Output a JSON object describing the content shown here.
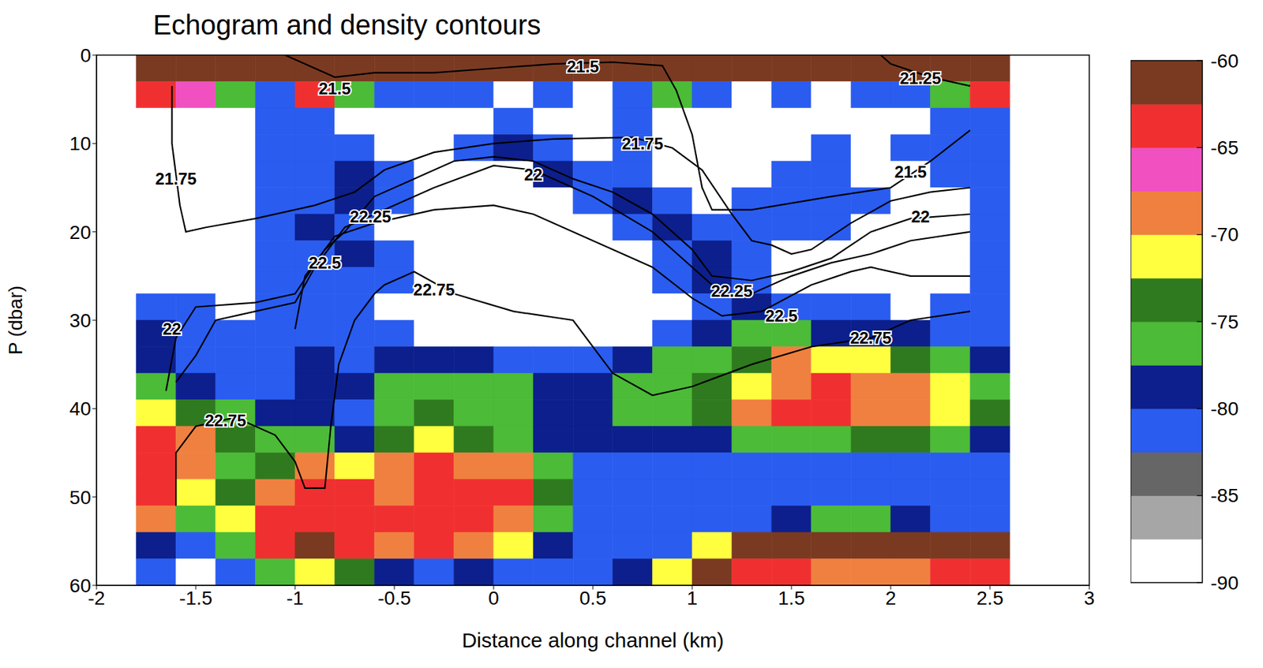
{
  "chart_data": {
    "type": "heatmap",
    "title": "Echogram and density contours",
    "x_label": "Distance along channel (km)",
    "y_label": "P (dbar)",
    "xlim": [
      -2,
      3
    ],
    "xticks": [
      -2,
      -1.5,
      -1,
      -0.5,
      0,
      0.5,
      1,
      1.5,
      2,
      2.5,
      3
    ],
    "ylim": [
      60,
      0
    ],
    "yticks": [
      0,
      10,
      20,
      30,
      40,
      50,
      60
    ],
    "x_edges": [
      -1.8,
      -1.6,
      -1.4,
      -1.2,
      -1,
      -0.8,
      -0.6,
      -0.4,
      -0.2,
      0,
      0.2,
      0.4,
      0.6,
      0.8,
      1,
      1.2,
      1.4,
      1.6,
      1.8,
      2,
      2.2,
      2.4,
      2.6
    ],
    "y_edges": [
      0,
      3,
      6,
      9,
      12,
      15,
      18,
      21,
      24,
      27,
      30,
      33,
      36,
      39,
      42,
      45,
      48,
      51,
      54,
      57,
      60
    ],
    "cells": [
      [
        -61,
        -61,
        -61,
        -61,
        -61,
        -61,
        -61,
        -61,
        -61,
        -61,
        -61,
        -61,
        -61,
        -61,
        -61,
        -61,
        -61,
        -61,
        -61,
        -61,
        -61,
        -61
      ],
      [
        -64,
        -66,
        -76,
        -82,
        -64,
        -76,
        -82,
        -82,
        -82,
        -88,
        -82,
        -88,
        -82,
        -76,
        -82,
        -88,
        -82,
        -88,
        -82,
        -82,
        -76,
        -64
      ],
      [
        -88,
        -88,
        -88,
        -82,
        -82,
        -88,
        -88,
        -88,
        -88,
        -82,
        -88,
        -88,
        -82,
        -88,
        -88,
        -88,
        -88,
        -88,
        -88,
        -88,
        -82,
        -82
      ],
      [
        -88,
        -88,
        -88,
        -82,
        -82,
        -82,
        -88,
        -88,
        -82,
        -79,
        -82,
        -88,
        -82,
        -88,
        -88,
        -88,
        -88,
        -82,
        -88,
        -82,
        -82,
        -82
      ],
      [
        -88,
        -88,
        -88,
        -82,
        -82,
        -79,
        -82,
        -88,
        -88,
        -88,
        -79,
        -82,
        -82,
        -88,
        -88,
        -88,
        -82,
        -82,
        -88,
        -88,
        -82,
        -82
      ],
      [
        -88,
        -88,
        -88,
        -82,
        -82,
        -79,
        -82,
        -88,
        -88,
        -88,
        -88,
        -82,
        -79,
        -82,
        -88,
        -82,
        -82,
        -82,
        -82,
        -88,
        -88,
        -82
      ],
      [
        -88,
        -88,
        -88,
        -82,
        -79,
        -82,
        -88,
        -88,
        -88,
        -88,
        -88,
        -88,
        -82,
        -79,
        -82,
        -82,
        -82,
        -82,
        -88,
        -88,
        -88,
        -82
      ],
      [
        -88,
        -88,
        -88,
        -82,
        -82,
        -79,
        -82,
        -88,
        -88,
        -88,
        -88,
        -88,
        -88,
        -82,
        -79,
        -82,
        -88,
        -88,
        -88,
        -88,
        -88,
        -82
      ],
      [
        -88,
        -88,
        -88,
        -82,
        -82,
        -82,
        -82,
        -88,
        -88,
        -88,
        -88,
        -88,
        -88,
        -82,
        -79,
        -82,
        -88,
        -88,
        -88,
        -88,
        -88,
        -82
      ],
      [
        -82,
        -82,
        -88,
        -82,
        -82,
        -82,
        -88,
        -88,
        -88,
        -88,
        -88,
        -88,
        -88,
        -88,
        -82,
        -79,
        -82,
        -82,
        -82,
        -88,
        -82,
        -82
      ],
      [
        -79,
        -82,
        -82,
        -82,
        -82,
        -82,
        -82,
        -88,
        -88,
        -88,
        -88,
        -88,
        -88,
        -82,
        -79,
        -76,
        -76,
        -79,
        -79,
        -79,
        -82,
        -82
      ],
      [
        -79,
        -82,
        -82,
        -82,
        -79,
        -82,
        -79,
        -79,
        -79,
        -82,
        -82,
        -82,
        -79,
        -76,
        -76,
        -74,
        -69,
        -71,
        -71,
        -74,
        -76,
        -79
      ],
      [
        -76,
        -79,
        -82,
        -82,
        -79,
        -79,
        -76,
        -76,
        -76,
        -76,
        -79,
        -79,
        -76,
        -76,
        -74,
        -71,
        -69,
        -64,
        -69,
        -69,
        -71,
        -76
      ],
      [
        -71,
        -74,
        -76,
        -79,
        -79,
        -82,
        -76,
        -74,
        -76,
        -76,
        -79,
        -79,
        -76,
        -76,
        -74,
        -69,
        -64,
        -64,
        -69,
        -69,
        -71,
        -74
      ],
      [
        -64,
        -69,
        -74,
        -76,
        -76,
        -79,
        -74,
        -71,
        -74,
        -76,
        -79,
        -79,
        -79,
        -79,
        -79,
        -76,
        -76,
        -76,
        -74,
        -74,
        -76,
        -79
      ],
      [
        -64,
        -69,
        -76,
        -74,
        -69,
        -71,
        -69,
        -64,
        -69,
        -69,
        -76,
        -82,
        -82,
        -82,
        -82,
        -82,
        -82,
        -82,
        -82,
        -82,
        -82,
        -82
      ],
      [
        -64,
        -71,
        -74,
        -69,
        -64,
        -64,
        -69,
        -64,
        -64,
        -64,
        -74,
        -82,
        -82,
        -82,
        -82,
        -82,
        -82,
        -82,
        -82,
        -82,
        -82,
        -82
      ],
      [
        -69,
        -76,
        -71,
        -64,
        -64,
        -64,
        -64,
        -64,
        -64,
        -69,
        -76,
        -82,
        -82,
        -82,
        -82,
        -82,
        -79,
        -76,
        -76,
        -79,
        -82,
        -82
      ],
      [
        -79,
        -82,
        -76,
        -64,
        -61,
        -64,
        -69,
        -64,
        -69,
        -71,
        -79,
        -82,
        -82,
        -82,
        -71,
        -61,
        -61,
        -61,
        -61,
        -61,
        -61,
        -61
      ],
      [
        -82,
        -88,
        -82,
        -76,
        -71,
        -74,
        -79,
        -82,
        -79,
        -82,
        -82,
        -82,
        -79,
        -71,
        -61,
        -64,
        -64,
        -69,
        -69,
        -69,
        -64,
        -64
      ]
    ],
    "colorbar": {
      "range": [
        -90,
        -60
      ],
      "ticks": [
        -90,
        -85,
        -80,
        -75,
        -70,
        -65,
        -60
      ],
      "colors": [
        "#ffffff",
        "#a6a6a6",
        "#666666",
        "#2a5cf0",
        "#0c1f8c",
        "#4cbb38",
        "#2f7a1e",
        "#ffff40",
        "#f08040",
        "#f050c0",
        "#f03030",
        "#7a3a22"
      ]
    },
    "contours": [
      {
        "level": 21.25,
        "x": [
          1.95,
          2.0,
          2.2,
          2.4
        ],
        "y": [
          0,
          1,
          2.5,
          3.5
        ],
        "label_at": [
          [
            2.15,
            2.6
          ]
        ]
      },
      {
        "level": 21.5,
        "x": [
          -1.05,
          -0.8,
          -0.6,
          -0.3,
          0,
          0.3,
          0.6,
          0.85,
          0.92,
          1.0,
          1.05,
          1.1,
          1.3,
          1.7,
          2.0,
          2.2,
          2.4
        ],
        "y": [
          0,
          2.5,
          2,
          2,
          1.5,
          1,
          0.8,
          1.2,
          4,
          9,
          15,
          17.5,
          17.5,
          16,
          15,
          12,
          8.5
        ],
        "label_at": [
          [
            -0.8,
            3.8
          ],
          [
            0.45,
            1.3
          ],
          [
            2.1,
            13.2
          ]
        ]
      },
      {
        "level": 21.75,
        "x": [
          -1.62,
          -1.62,
          -1.58,
          -1.55,
          -1.45,
          -1.2,
          -0.9,
          -0.7,
          -0.55,
          -0.3,
          0,
          0.3,
          0.7,
          0.9,
          1.05,
          1.2,
          1.3,
          1.4,
          1.5,
          1.6,
          1.8,
          2.0,
          2.2,
          2.4
        ],
        "y": [
          3.5,
          10,
          17,
          20,
          19.5,
          18.5,
          17,
          15.5,
          13,
          11,
          10,
          9.5,
          9.3,
          10.5,
          13,
          18,
          21,
          21.5,
          22.5,
          22,
          19,
          16.5,
          15.5,
          15
        ],
        "label_at": [
          [
            -1.6,
            14
          ],
          [
            0.75,
            10
          ]
        ]
      },
      {
        "level": 22,
        "x": [
          -1.65,
          -1.6,
          -1.5,
          -1.2,
          -1.0,
          -0.85,
          -0.75,
          -0.6,
          -0.4,
          -0.2,
          0,
          0.2,
          0.4,
          0.6,
          0.8,
          1.0,
          1.1,
          1.3,
          1.5,
          1.7,
          1.9,
          2.1,
          2.4
        ],
        "y": [
          38,
          32,
          28.5,
          28,
          27,
          22,
          20,
          16,
          14,
          12,
          11.5,
          12,
          14,
          15.5,
          18,
          22,
          25,
          25.5,
          24.5,
          23,
          20,
          18.5,
          18
        ],
        "label_at": [
          [
            -1.62,
            31
          ],
          [
            0.2,
            13.5
          ],
          [
            2.15,
            18.3
          ]
        ]
      },
      {
        "level": 22.25,
        "x": [
          -1.6,
          -1.5,
          -1.4,
          -1.2,
          -1.0,
          -0.9,
          -0.75,
          -0.55,
          -0.3,
          0,
          0.2,
          0.5,
          0.8,
          1.0,
          1.15,
          1.3,
          1.5,
          1.7,
          1.9,
          2.1,
          2.4
        ],
        "y": [
          37,
          34,
          30,
          29,
          28,
          24,
          19.5,
          17.5,
          15,
          12.5,
          13,
          16,
          20,
          24,
          27,
          27,
          25,
          23.5,
          22.5,
          21,
          20
        ],
        "label_at": [
          [
            -0.62,
            18.3
          ],
          [
            1.2,
            26.7
          ]
        ]
      },
      {
        "level": 22.5,
        "x": [
          -1.0,
          -0.95,
          -0.8,
          -0.6,
          -0.3,
          0,
          0.2,
          0.5,
          0.8,
          1.0,
          1.15,
          1.35,
          1.6,
          1.8,
          1.9,
          2.1,
          2.4
        ],
        "y": [
          31,
          25,
          20.5,
          19,
          17.5,
          17,
          18,
          21,
          24,
          27.5,
          29.5,
          29,
          26,
          24.5,
          24,
          25,
          25
        ],
        "label_at": [
          [
            -0.85,
            23.5
          ],
          [
            1.45,
            29.5
          ]
        ]
      },
      {
        "level": 22.75,
        "x": [
          -1.6,
          -1.6,
          -1.5,
          -1.3,
          -1.1,
          -1.0,
          -0.95,
          -0.85,
          -0.82,
          -0.78,
          -0.7,
          -0.6,
          -0.55,
          -0.4,
          -0.2,
          0.1,
          0.4,
          0.6,
          0.8,
          1.0,
          1.3,
          1.6,
          1.9,
          2.1,
          2.4
        ],
        "y": [
          51,
          45,
          42,
          41,
          43,
          46,
          49,
          49,
          42,
          35,
          30,
          27,
          26,
          24.5,
          27,
          29,
          30,
          36,
          38.5,
          37.5,
          35,
          33,
          32,
          30,
          29
        ],
        "label_at": [
          [
            -1.35,
            41.3
          ],
          [
            -0.3,
            26.5
          ],
          [
            1.9,
            32
          ]
        ]
      }
    ]
  }
}
